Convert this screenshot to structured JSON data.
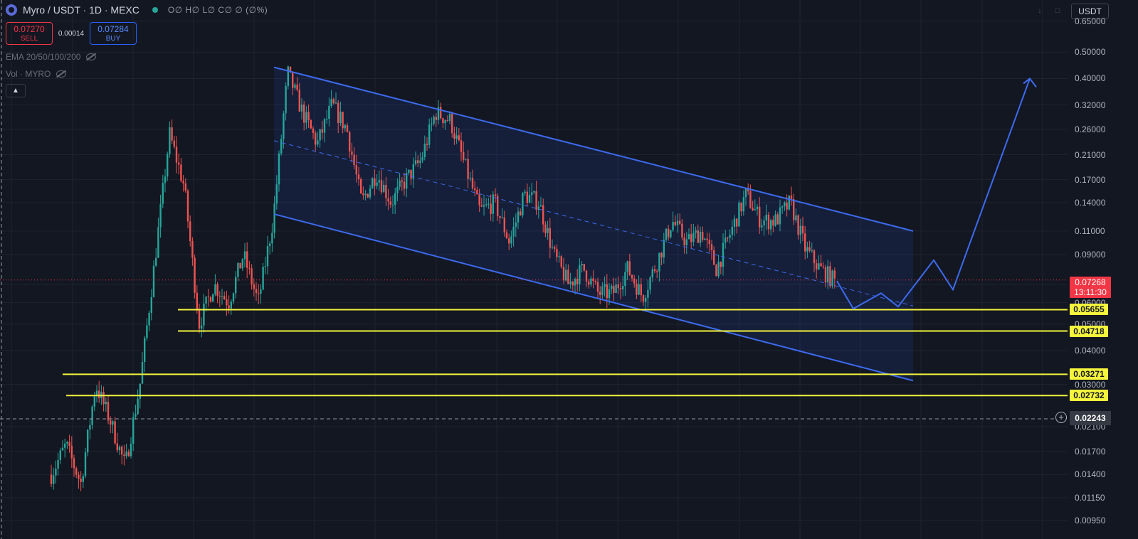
{
  "header": {
    "symbol": "Myro / USDT · 1D · MEXC",
    "ohlc": "O∅ H∅ L∅ C∅ ∅ (∅%)",
    "status_color": "#26a69a"
  },
  "trade": {
    "sell_price": "0.07270",
    "sell_label": "SELL",
    "spread": "0.00014",
    "buy_price": "0.07284",
    "buy_label": "BUY"
  },
  "indicators": [
    {
      "label": "EMA 20/50/100/200",
      "icon": "eye-hidden-icon"
    },
    {
      "label": "Vol · MYRO",
      "icon": "eye-hidden-icon"
    }
  ],
  "collapse_icon": "chevron-up-icon",
  "currency_unit": "USDT",
  "chart_data": {
    "type": "candlestick",
    "scale": "log",
    "ylim": [
      0.0087,
      0.72
    ],
    "price_ticks": [
      "0.65000",
      "0.50000",
      "0.40000",
      "0.32000",
      "0.26000",
      "0.21000",
      "0.17000",
      "0.14000",
      "0.11000",
      "0.09000",
      "0.07",
      "0.06000",
      "0.05000",
      "0.04000",
      "0.03000",
      "0.02100",
      "0.01700",
      "0.01400",
      "0.01150",
      "0.00950"
    ],
    "current_price": {
      "value": "0.07268",
      "countdown": "13:11:30",
      "color": "#f23645"
    },
    "crosshair_price": "0.02243",
    "horizontal_levels": [
      "0.05655",
      "0.04718",
      "0.03271",
      "0.02732"
    ],
    "level_color": "#f5f53c",
    "pattern": {
      "type": "descending channel",
      "upper_line": [
        [
          0.44
        ],
        [
          0.11
        ]
      ],
      "lower_line": [
        [
          0.127
        ],
        [
          0.031
        ]
      ],
      "color": "#3d6bf0"
    },
    "projection_path": [
      0.072,
      0.057,
      0.065,
      0.058,
      0.086,
      0.067,
      0.4
    ],
    "up_color": "#26a69a",
    "down_color": "#ef5350",
    "price_anchors": [
      0.014,
      0.018,
      0.013,
      0.03,
      0.022,
      0.015,
      0.03,
      0.085,
      0.25,
      0.16,
      0.05,
      0.07,
      0.06,
      0.09,
      0.06,
      0.12,
      0.42,
      0.3,
      0.23,
      0.32,
      0.26,
      0.14,
      0.18,
      0.14,
      0.17,
      0.2,
      0.3,
      0.28,
      0.19,
      0.13,
      0.14,
      0.1,
      0.15,
      0.14,
      0.09,
      0.07,
      0.08,
      0.065,
      0.065,
      0.08,
      0.063,
      0.085,
      0.12,
      0.1,
      0.11,
      0.08,
      0.11,
      0.15,
      0.12,
      0.12,
      0.14,
      0.095,
      0.08,
      0.072
    ]
  }
}
